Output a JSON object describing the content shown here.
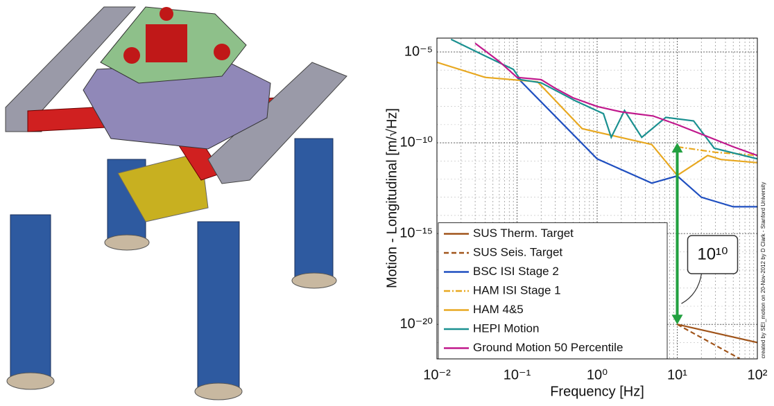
{
  "chart_data": {
    "type": "line",
    "x_label": "Frequency [Hz]",
    "y_label": "Motion - Longitudinal [m/√Hz]",
    "credit": "created by SEI_motion on 20-Nov-2012 by D Clark - Stanford University",
    "annotation": {
      "text": "10¹⁰",
      "x": 10,
      "from": 1e-10,
      "to": 1e-20,
      "color": "#22a040"
    },
    "log_x": true,
    "log_y": true,
    "grid": true,
    "legend": "lower left",
    "xlim": [
      0.01,
      100
    ],
    "xticks": [
      {
        "value": 0.01,
        "label": "10⁻²"
      },
      {
        "value": 0.1,
        "label": "10⁻¹"
      },
      {
        "value": 1,
        "label": "10⁰"
      },
      {
        "value": 10,
        "label": "10¹"
      },
      {
        "value": 100,
        "label": "10²"
      }
    ],
    "ylim": [
      1.26e-22,
      5.8e-05
    ],
    "yticks": [
      {
        "value": 1e-05,
        "label": "10⁻⁵"
      },
      {
        "value": 1e-10,
        "label": "10⁻¹⁰"
      },
      {
        "value": 1e-15,
        "label": "10⁻¹⁵"
      },
      {
        "value": 1e-20,
        "label": "10⁻²⁰"
      }
    ],
    "series": [
      {
        "name": "SUS Therm. Target",
        "color": "#a0541a",
        "dash": "solid",
        "x": [
          10,
          100
        ],
        "values": [
          1e-20,
          1e-21
        ]
      },
      {
        "name": "SUS Seis. Target",
        "color": "#a0541a",
        "dash": "dashed",
        "x": [
          10,
          60
        ],
        "values": [
          1e-20,
          1.3e-22
        ]
      },
      {
        "name": "BSC ISI Stage 2",
        "color": "#1f4fc0",
        "dash": "solid",
        "x": [
          0.1,
          1,
          4.8,
          10,
          20,
          50,
          100
        ],
        "values": [
          4e-07,
          1.3e-11,
          6e-13,
          1.5e-12,
          1e-13,
          3e-14,
          3e-14
        ]
      },
      {
        "name": "HAM ISI Stage 1",
        "color": "#e8a820",
        "dash": "dashdot",
        "x": [
          10,
          30,
          100
        ],
        "values": [
          6e-11,
          3e-11,
          2e-11
        ]
      },
      {
        "name": "HAM 4&5",
        "color": "#e8a820",
        "dash": "solid",
        "x": [
          0.01,
          0.04,
          0.18,
          0.65,
          4.8,
          10,
          24,
          35,
          100
        ],
        "values": [
          2.7e-06,
          4e-07,
          2.3e-07,
          6e-10,
          8e-11,
          1.6e-12,
          2e-11,
          1.2e-11,
          8e-12
        ]
      },
      {
        "name": "HEPI Motion",
        "color": "#1a9090",
        "dash": "solid",
        "x": [
          0.015,
          0.04,
          0.09,
          0.11,
          0.2,
          0.54,
          1.2,
          1.5,
          2.2,
          3.6,
          7.2,
          16,
          29,
          100
        ],
        "values": [
          5e-05,
          6e-06,
          1.1e-06,
          3e-07,
          2e-07,
          2e-08,
          4e-09,
          2e-10,
          6e-09,
          2e-10,
          2.5e-09,
          1.6e-09,
          5e-11,
          1.3e-11
        ]
      },
      {
        "name": "Ground Motion 50 Percentile",
        "color": "#c0188c",
        "dash": "solid",
        "x": [
          0.03,
          0.06,
          0.1,
          0.2,
          0.3,
          0.5,
          1,
          2,
          5,
          10,
          20,
          50,
          100
        ],
        "values": [
          3e-05,
          3e-06,
          4e-07,
          3e-07,
          1e-07,
          3e-08,
          1e-08,
          5e-09,
          3e-09,
          1e-09,
          3e-10,
          6e-11,
          2e-11
        ]
      }
    ]
  }
}
